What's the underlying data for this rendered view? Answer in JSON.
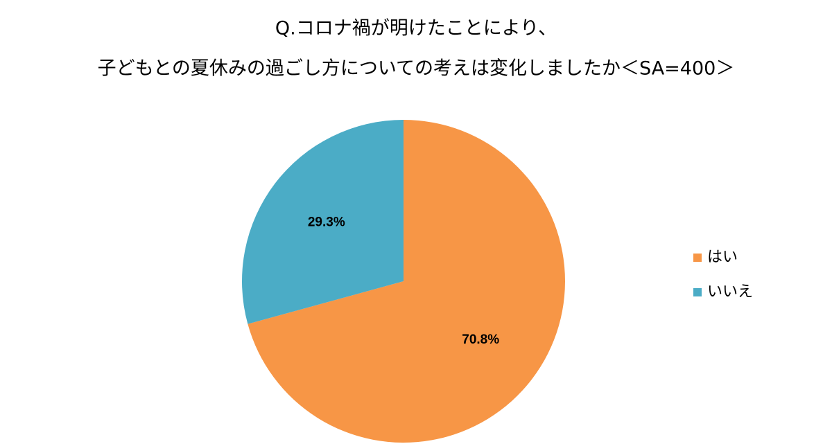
{
  "chart_data": {
    "type": "pie",
    "title": [
      "Q.コロナ禍が明けたことにより、",
      "子どもとの夏休みの過ごし方についての考えは変化しましたか＜SA=400＞"
    ],
    "categories": [
      "はい",
      "いいえ"
    ],
    "values": [
      70.8,
      29.3
    ],
    "value_labels": [
      "70.8%",
      "29.3%"
    ],
    "colors": [
      "#f79646",
      "#4bacc6"
    ],
    "legend": "right"
  }
}
